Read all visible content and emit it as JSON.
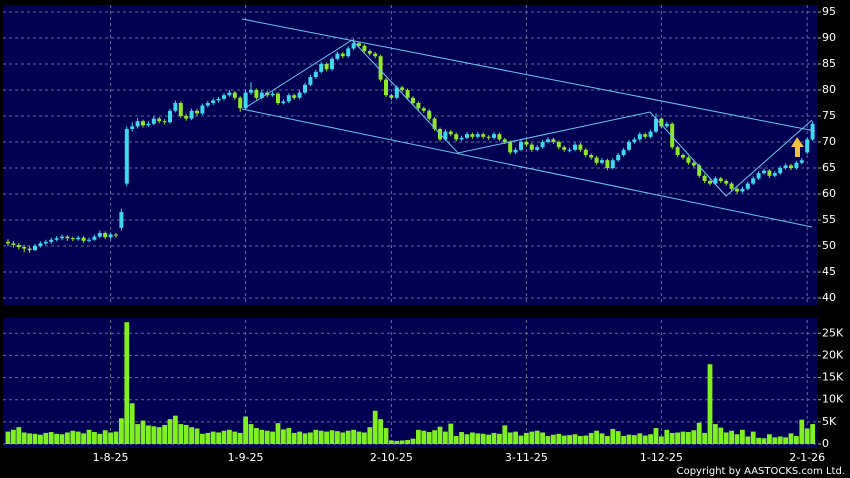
{
  "chart_data": [
    {
      "type": "candlestick",
      "up_color": "#3fd9ee",
      "down_color": "#8fe826",
      "grid": true,
      "ylim": [
        38.65,
        96.35
      ],
      "yticks": [
        40,
        45,
        50,
        55,
        60,
        65,
        70,
        75,
        80,
        85,
        90,
        95
      ],
      "categories": [
        null,
        null,
        null,
        null,
        null,
        null,
        null,
        null,
        null,
        null,
        null,
        null,
        null,
        null,
        null,
        null,
        null,
        null,
        null,
        "1-8-25",
        null,
        null,
        null,
        null,
        null,
        null,
        null,
        null,
        null,
        null,
        null,
        null,
        null,
        null,
        null,
        null,
        null,
        null,
        null,
        null,
        null,
        null,
        null,
        null,
        "1-9-25",
        null,
        null,
        null,
        null,
        null,
        null,
        null,
        null,
        null,
        null,
        null,
        null,
        null,
        null,
        null,
        null,
        null,
        null,
        null,
        null,
        null,
        null,
        null,
        null,
        null,
        null,
        "2-10-25",
        null,
        null,
        null,
        null,
        null,
        null,
        null,
        null,
        null,
        null,
        null,
        null,
        null,
        null,
        null,
        null,
        null,
        null,
        null,
        null,
        null,
        null,
        null,
        null,
        "3-11-25",
        null,
        null,
        null,
        null,
        null,
        null,
        null,
        null,
        null,
        null,
        null,
        null,
        null,
        null,
        null,
        null,
        null,
        null,
        null,
        null,
        null,
        null,
        null,
        null,
        "1-12-25",
        null,
        null,
        null,
        null,
        null,
        null,
        null,
        null,
        null,
        null,
        null,
        null,
        null,
        null,
        null,
        null,
        null,
        null,
        null,
        null,
        null,
        null,
        null,
        null,
        null,
        null,
        "2-1-26",
        null,
        null,
        null
      ],
      "candles": [
        [
          50.8,
          51.3,
          50.0,
          50.5
        ],
        [
          50.5,
          50.9,
          49.7,
          50.2
        ],
        [
          50.2,
          50.6,
          49.3,
          49.8
        ],
        [
          49.8,
          50.2,
          48.8,
          49.5
        ],
        [
          49.5,
          49.9,
          48.7,
          49.2
        ],
        [
          49.2,
          50.4,
          49.0,
          50.0
        ],
        [
          50.0,
          50.9,
          49.7,
          50.5
        ],
        [
          50.5,
          51.2,
          50.2,
          50.8
        ],
        [
          50.8,
          51.6,
          50.4,
          51.2
        ],
        [
          51.2,
          51.9,
          50.9,
          51.5
        ],
        [
          51.5,
          52.2,
          51.1,
          51.8
        ],
        [
          51.8,
          52.1,
          51.0,
          51.5
        ],
        [
          51.5,
          51.8,
          50.9,
          51.3
        ],
        [
          51.3,
          52.0,
          51.0,
          51.6
        ],
        [
          51.6,
          51.9,
          50.6,
          51.0
        ],
        [
          51.0,
          51.6,
          50.7,
          51.2
        ],
        [
          51.2,
          52.2,
          51.0,
          51.8
        ],
        [
          51.8,
          53.0,
          51.5,
          52.5
        ],
        [
          52.5,
          52.8,
          51.3,
          51.7
        ],
        [
          51.7,
          52.6,
          51.4,
          52.2
        ],
        [
          52.2,
          52.5,
          51.6,
          52.0
        ],
        [
          53.5,
          57.2,
          53.0,
          56.5
        ],
        [
          62.0,
          73.0,
          61.5,
          72.5
        ],
        [
          72.5,
          73.8,
          72.0,
          73.0
        ],
        [
          73.0,
          74.6,
          72.6,
          74.0
        ],
        [
          74.0,
          74.3,
          72.8,
          73.2
        ],
        [
          73.2,
          74.0,
          72.9,
          73.5
        ],
        [
          73.5,
          75.0,
          73.2,
          74.5
        ],
        [
          74.5,
          74.8,
          73.6,
          74.0
        ],
        [
          74.0,
          74.4,
          73.4,
          73.8
        ],
        [
          73.8,
          76.4,
          73.5,
          76.0
        ],
        [
          76.0,
          78.0,
          75.7,
          77.5
        ],
        [
          77.5,
          77.8,
          74.6,
          75.0
        ],
        [
          75.0,
          75.4,
          74.1,
          74.5
        ],
        [
          74.5,
          76.4,
          74.2,
          76.0
        ],
        [
          76.0,
          76.3,
          75.1,
          75.5
        ],
        [
          75.5,
          77.4,
          75.2,
          77.0
        ],
        [
          77.0,
          77.9,
          76.7,
          77.5
        ],
        [
          77.5,
          78.4,
          77.1,
          78.0
        ],
        [
          78.0,
          78.7,
          77.6,
          78.3
        ],
        [
          78.3,
          79.4,
          78.0,
          79.0
        ],
        [
          79.0,
          80.0,
          78.7,
          79.5
        ],
        [
          79.5,
          79.8,
          78.1,
          78.5
        ],
        [
          78.5,
          78.8,
          75.8,
          76.5
        ],
        [
          76.5,
          80.0,
          76.2,
          79.5
        ],
        [
          79.5,
          81.5,
          79.1,
          80.0
        ],
        [
          80.0,
          80.3,
          78.1,
          78.5
        ],
        [
          78.5,
          80.0,
          78.2,
          79.5
        ],
        [
          79.5,
          79.8,
          78.6,
          79.0
        ],
        [
          79.0,
          79.7,
          78.7,
          79.3
        ],
        [
          79.3,
          79.6,
          77.1,
          77.5
        ],
        [
          77.5,
          78.2,
          77.2,
          77.8
        ],
        [
          77.8,
          79.4,
          77.5,
          79.0
        ],
        [
          79.0,
          79.3,
          78.1,
          78.5
        ],
        [
          78.5,
          79.9,
          78.2,
          79.5
        ],
        [
          79.5,
          81.4,
          79.2,
          81.0
        ],
        [
          81.0,
          82.9,
          80.7,
          82.5
        ],
        [
          82.5,
          83.9,
          82.1,
          83.5
        ],
        [
          83.5,
          85.4,
          83.2,
          85.0
        ],
        [
          85.0,
          85.3,
          83.6,
          84.0
        ],
        [
          84.0,
          86.4,
          83.7,
          86.0
        ],
        [
          86.0,
          87.4,
          85.7,
          87.0
        ],
        [
          87.0,
          87.3,
          86.1,
          86.5
        ],
        [
          86.5,
          88.4,
          86.2,
          88.0
        ],
        [
          88.0,
          89.8,
          87.7,
          89.0
        ],
        [
          89.0,
          89.3,
          88.1,
          88.5
        ],
        [
          88.5,
          88.8,
          87.1,
          87.5
        ],
        [
          87.5,
          87.8,
          86.6,
          87.0
        ],
        [
          87.0,
          87.3,
          86.1,
          86.5
        ],
        [
          86.5,
          86.8,
          81.6,
          82.0
        ],
        [
          82.0,
          82.3,
          78.6,
          79.0
        ],
        [
          79.0,
          79.3,
          78.1,
          78.5
        ],
        [
          78.5,
          80.9,
          78.2,
          80.5
        ],
        [
          80.5,
          80.8,
          79.6,
          80.0
        ],
        [
          80.0,
          80.3,
          78.1,
          78.5
        ],
        [
          78.5,
          78.8,
          77.1,
          77.5
        ],
        [
          77.5,
          77.8,
          76.1,
          76.5
        ],
        [
          76.5,
          76.8,
          75.6,
          76.0
        ],
        [
          76.0,
          76.3,
          74.1,
          74.5
        ],
        [
          74.5,
          74.8,
          72.1,
          72.5
        ],
        [
          72.5,
          72.8,
          70.1,
          70.5
        ],
        [
          70.5,
          72.4,
          70.2,
          72.0
        ],
        [
          72.0,
          72.3,
          71.1,
          71.5
        ],
        [
          71.5,
          71.8,
          70.1,
          70.5
        ],
        [
          70.5,
          71.2,
          70.2,
          70.8
        ],
        [
          70.8,
          71.9,
          70.5,
          71.5
        ],
        [
          71.5,
          71.8,
          70.6,
          71.0
        ],
        [
          71.0,
          71.9,
          70.7,
          71.5
        ],
        [
          71.5,
          71.8,
          70.6,
          71.0
        ],
        [
          71.0,
          71.3,
          70.4,
          70.8
        ],
        [
          70.8,
          71.9,
          70.5,
          71.5
        ],
        [
          71.5,
          71.8,
          70.1,
          70.5
        ],
        [
          70.5,
          70.8,
          69.6,
          70.0
        ],
        [
          70.0,
          70.3,
          67.6,
          68.0
        ],
        [
          68.0,
          68.9,
          67.7,
          68.5
        ],
        [
          68.5,
          70.4,
          68.2,
          70.0
        ],
        [
          70.0,
          70.3,
          69.1,
          69.5
        ],
        [
          69.5,
          69.8,
          68.1,
          68.5
        ],
        [
          68.5,
          69.4,
          68.2,
          69.0
        ],
        [
          69.0,
          70.4,
          68.7,
          70.0
        ],
        [
          70.0,
          70.9,
          69.7,
          70.5
        ],
        [
          70.5,
          70.8,
          69.6,
          70.0
        ],
        [
          70.0,
          70.3,
          68.6,
          69.0
        ],
        [
          69.0,
          69.3,
          68.1,
          68.5
        ],
        [
          68.5,
          68.9,
          68.0,
          68.5
        ],
        [
          68.5,
          69.9,
          68.2,
          69.5
        ],
        [
          69.5,
          69.8,
          68.1,
          68.5
        ],
        [
          68.5,
          68.8,
          67.1,
          67.5
        ],
        [
          67.5,
          67.8,
          66.6,
          67.0
        ],
        [
          67.0,
          67.3,
          65.6,
          66.0
        ],
        [
          66.0,
          66.9,
          65.7,
          66.5
        ],
        [
          66.5,
          66.8,
          64.6,
          65.0
        ],
        [
          65.0,
          66.9,
          64.7,
          66.5
        ],
        [
          66.5,
          67.9,
          66.2,
          67.5
        ],
        [
          67.5,
          68.9,
          67.2,
          68.5
        ],
        [
          68.5,
          70.4,
          68.2,
          70.0
        ],
        [
          70.0,
          70.9,
          69.7,
          70.5
        ],
        [
          70.5,
          71.9,
          70.2,
          71.5
        ],
        [
          71.5,
          71.8,
          70.6,
          71.0
        ],
        [
          71.0,
          72.4,
          70.7,
          72.0
        ],
        [
          72.0,
          75.5,
          71.7,
          74.5
        ],
        [
          74.5,
          74.8,
          72.6,
          73.0
        ],
        [
          73.0,
          73.9,
          72.7,
          73.5
        ],
        [
          73.5,
          73.8,
          68.6,
          69.0
        ],
        [
          69.0,
          69.3,
          67.1,
          67.5
        ],
        [
          67.5,
          67.8,
          66.6,
          67.0
        ],
        [
          67.0,
          67.3,
          65.6,
          66.0
        ],
        [
          66.0,
          66.3,
          65.1,
          65.5
        ],
        [
          65.5,
          65.8,
          63.1,
          63.5
        ],
        [
          63.5,
          63.8,
          62.1,
          62.5
        ],
        [
          62.5,
          62.8,
          61.6,
          62.0
        ],
        [
          62.0,
          63.4,
          61.7,
          63.0
        ],
        [
          63.0,
          63.3,
          62.1,
          62.5
        ],
        [
          62.5,
          62.8,
          61.6,
          62.0
        ],
        [
          62.0,
          62.3,
          60.6,
          61.0
        ],
        [
          61.0,
          61.3,
          60.1,
          60.5
        ],
        [
          60.5,
          61.4,
          60.2,
          61.0
        ],
        [
          61.0,
          62.4,
          60.7,
          62.0
        ],
        [
          62.0,
          63.4,
          61.7,
          63.0
        ],
        [
          63.0,
          64.4,
          62.7,
          64.0
        ],
        [
          64.0,
          64.9,
          63.7,
          64.5
        ],
        [
          64.5,
          64.8,
          63.1,
          63.5
        ],
        [
          63.5,
          64.4,
          63.2,
          64.0
        ],
        [
          64.0,
          65.4,
          63.7,
          65.0
        ],
        [
          65.0,
          65.9,
          64.7,
          65.5
        ],
        [
          65.5,
          65.8,
          64.6,
          65.0
        ],
        [
          65.0,
          66.4,
          64.7,
          66.0
        ],
        [
          66.0,
          66.9,
          65.7,
          66.5
        ],
        [
          68.0,
          70.9,
          67.7,
          70.5
        ],
        [
          70.5,
          74.0,
          70.2,
          73.5
        ]
      ]
    },
    {
      "type": "bar",
      "color": "#80f020",
      "grid": true,
      "ylim": [
        0,
        28000
      ],
      "yticks": [
        0,
        {
          "value": 5000,
          "label": "5K"
        },
        {
          "value": 10000,
          "label": "10K"
        },
        {
          "value": 15000,
          "label": "15K"
        },
        {
          "value": 20000,
          "label": "20K"
        },
        {
          "value": 25000,
          "label": "25K"
        }
      ],
      "values": [
        2800,
        3200,
        3800,
        2600,
        2400,
        2300,
        2100,
        2500,
        2700,
        2300,
        2200,
        2600,
        3000,
        2800,
        2400,
        3200,
        2700,
        2300,
        3100,
        2600,
        2800,
        5800,
        27500,
        9200,
        4500,
        5300,
        4200,
        4000,
        3800,
        4300,
        5600,
        6400,
        4500,
        4300,
        3800,
        3500,
        2300,
        2500,
        2800,
        2600,
        3000,
        3200,
        2800,
        2500,
        6200,
        4500,
        3600,
        3200,
        3000,
        2800,
        4700,
        3300,
        3600,
        2500,
        2800,
        2400,
        2600,
        3200,
        3000,
        2800,
        3100,
        2900,
        2600,
        3000,
        3200,
        2800,
        2600,
        3800,
        7500,
        5600,
        3600,
        800,
        700,
        800,
        900,
        1200,
        3200,
        3000,
        2700,
        3100,
        3900,
        2800,
        4600,
        1800,
        2700,
        2200,
        2600,
        2400,
        2300,
        2100,
        2500,
        2300,
        4200,
        2600,
        2800,
        1900,
        2500,
        2800,
        3000,
        2600,
        1800,
        2100,
        2300,
        1900,
        2000,
        2200,
        1800,
        1900,
        2500,
        3000,
        2400,
        1800,
        3400,
        2900,
        1800,
        2100,
        2000,
        2400,
        1900,
        2200,
        3600,
        1700,
        3200,
        2500,
        2600,
        2800,
        2700,
        3100,
        4800,
        2500,
        18000,
        4500,
        3700,
        2600,
        3000,
        2200,
        3200,
        1700,
        2800,
        1400,
        1300,
        2200,
        1500,
        1700,
        1500,
        2400,
        1800,
        5500,
        3500,
        4500
      ]
    }
  ],
  "copyright": "Copyright by AASTOCKS.com Ltd."
}
